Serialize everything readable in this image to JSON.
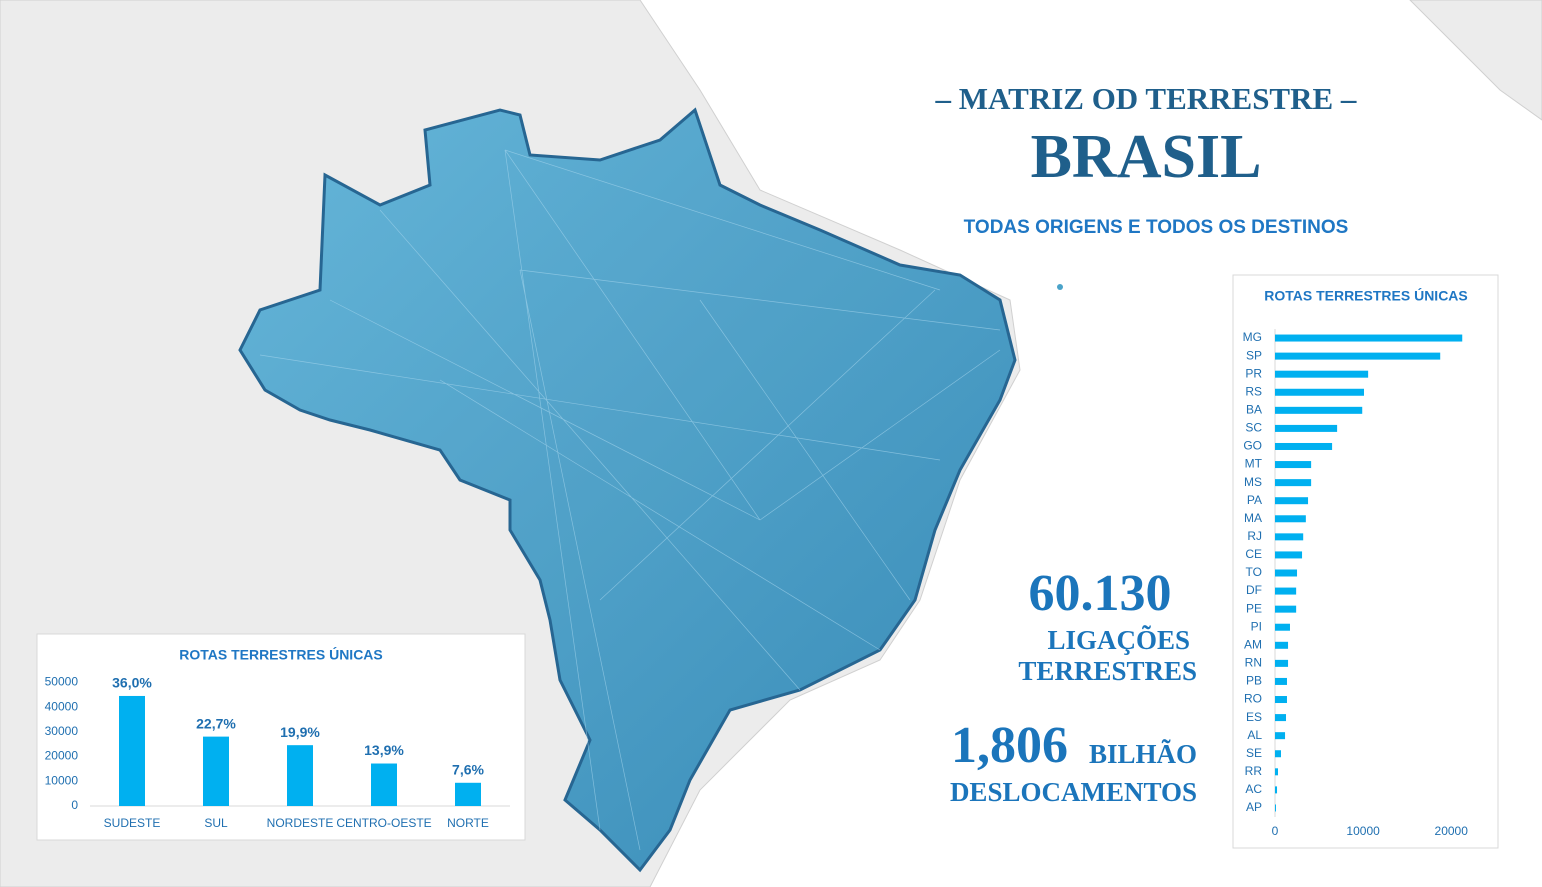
{
  "header": {
    "pre": "– MATRIZ OD TERRESTRE –",
    "title": "BRASIL",
    "subtitle": "TODAS ORIGENS E TODOS OS DESTINOS"
  },
  "stats": [
    {
      "value": "60.130",
      "lines": [
        "LIGAÇÕES",
        "TERRESTRES"
      ]
    },
    {
      "value": "1,806",
      "unit": "BILHÃO",
      "lines": [
        "DESLOCAMENTOS"
      ]
    }
  ],
  "chart_data": [
    {
      "type": "bar",
      "title": "ROTAS TERRESTRES ÚNICAS",
      "categories": [
        "SUDESTE",
        "SUL",
        "NORDESTE",
        "CENTRO-OESTE",
        "NORTE"
      ],
      "values": [
        44500,
        28060,
        24600,
        17180,
        9390
      ],
      "labels": [
        "36,0%",
        "22,7%",
        "19,9%",
        "13,9%",
        "7,6%"
      ],
      "color": "#00b0f0",
      "ylim": [
        0,
        55000
      ],
      "yticks": [
        0,
        10000,
        20000,
        30000,
        40000,
        50000
      ]
    },
    {
      "type": "hbar",
      "title": "ROTAS TERRESTRES ÚNICAS",
      "categories": [
        "MG",
        "SP",
        "PR",
        "RS",
        "BA",
        "SC",
        "GO",
        "MT",
        "MS",
        "PA",
        "MA",
        "RJ",
        "CE",
        "TO",
        "DF",
        "PE",
        "PI",
        "AM",
        "RN",
        "PB",
        "RO",
        "ES",
        "AL",
        "SE",
        "RR",
        "AC",
        "AP"
      ],
      "values": [
        21250,
        18750,
        10570,
        10100,
        9900,
        7050,
        6480,
        4100,
        4100,
        3750,
        3500,
        3200,
        3070,
        2500,
        2400,
        2400,
        1700,
        1480,
        1480,
        1360,
        1360,
        1250,
        1140,
        680,
        340,
        230,
        110
      ],
      "color": "#00b0f0",
      "xlim": [
        0,
        24400
      ],
      "xticks": [
        0,
        10000,
        20000
      ]
    }
  ]
}
